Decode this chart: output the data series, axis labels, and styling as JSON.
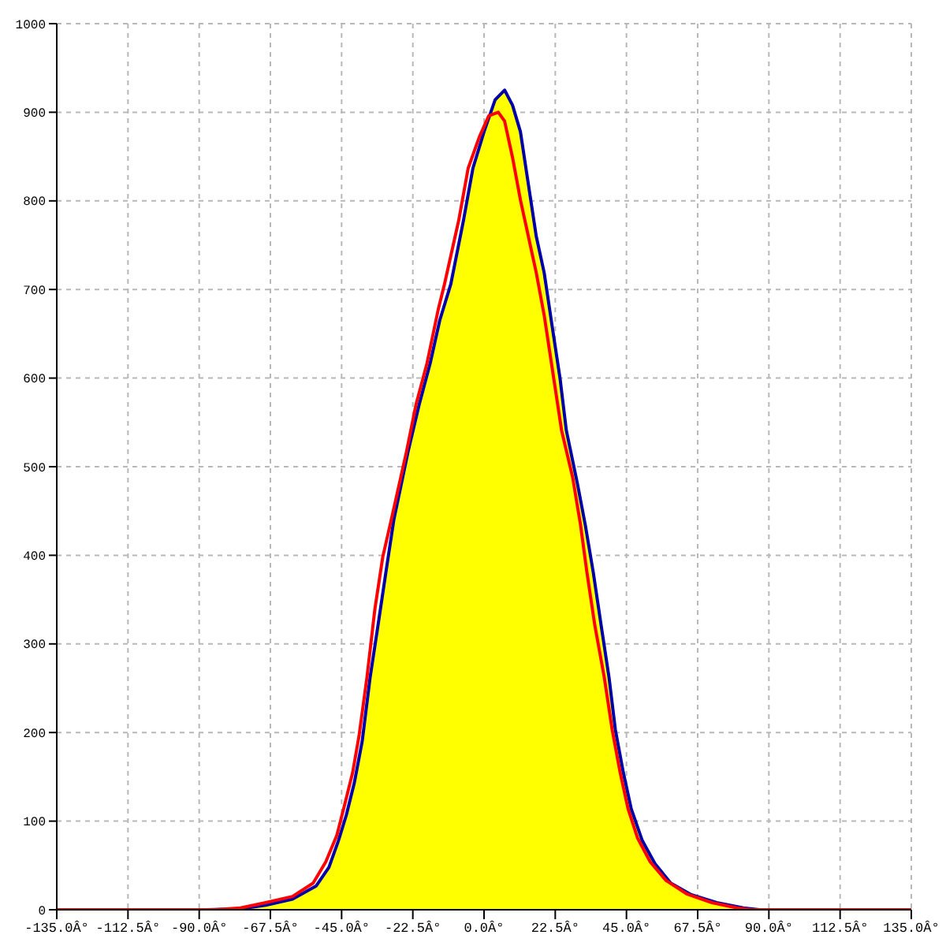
{
  "chart_data": {
    "type": "line",
    "xlim": [
      -135,
      135
    ],
    "xticks": [
      {
        "value": -135,
        "label": "-135.0Â°"
      },
      {
        "value": -112.5,
        "label": "-112.5Â°"
      },
      {
        "value": -90,
        "label": "-90.0Â°"
      },
      {
        "value": -67.5,
        "label": "-67.5Â°"
      },
      {
        "value": -45,
        "label": "-45.0Â°"
      },
      {
        "value": -22.5,
        "label": "-22.5Â°"
      },
      {
        "value": 0,
        "label": "0.0Â°"
      },
      {
        "value": 22.5,
        "label": "22.5Â°"
      },
      {
        "value": 45,
        "label": "45.0Â°"
      },
      {
        "value": 67.5,
        "label": "67.5Â°"
      },
      {
        "value": 90,
        "label": "90.0Â°"
      },
      {
        "value": 112.5,
        "label": "112.5Â°"
      },
      {
        "value": 135,
        "label": "135.0Â°"
      }
    ],
    "ylim": [
      0,
      1000
    ],
    "yticks": [
      0,
      100,
      200,
      300,
      400,
      500,
      600,
      700,
      800,
      900,
      1000
    ],
    "grid": true,
    "series": [
      {
        "type": "area",
        "color": "#ffff00",
        "x": [
          -77,
          -69,
          -60.5,
          -53,
          -49,
          -46,
          -43.5,
          -41,
          -38.5,
          -36,
          -33.5,
          -31,
          -28.5,
          -24,
          -20.5,
          -17,
          -14,
          -10.5,
          -6.5,
          -3.5,
          0,
          3.5,
          6.5,
          9,
          11.5,
          14,
          16.5,
          19,
          21.5,
          24,
          26,
          29.5,
          32,
          34.5,
          37,
          39.5,
          41.5,
          44,
          46.5,
          50,
          54,
          59,
          65.5,
          73.5,
          82
        ],
        "values": [
          1,
          5,
          12,
          27,
          48,
          78,
          107,
          143,
          190,
          262,
          321,
          381,
          440,
          517,
          570,
          617,
          665,
          706,
          778,
          837,
          878,
          914,
          925,
          908,
          878,
          819,
          760,
          719,
          659,
          600,
          541,
          481,
          434,
          381,
          321,
          262,
          203,
          155,
          114,
          78,
          52,
          30,
          17,
          8,
          2
        ]
      },
      {
        "color": "#0000aa",
        "x": [
          -88,
          -77,
          -69,
          -60.5,
          -53,
          -49,
          -46,
          -43.5,
          -41,
          -38.5,
          -36,
          -33.5,
          -31,
          -28.5,
          -24,
          -20.5,
          -17,
          -14,
          -10.5,
          -6.5,
          -3.5,
          0,
          3.5,
          6.5,
          9,
          11.5,
          14,
          16.5,
          19,
          21.5,
          24,
          26,
          29.5,
          32,
          34.5,
          37,
          39.5,
          41.5,
          44,
          46.5,
          50,
          54,
          59,
          65.5,
          73.5,
          82,
          87
        ],
        "values": [
          0,
          1,
          5,
          12,
          27,
          48,
          78,
          107,
          143,
          190,
          262,
          321,
          381,
          440,
          517,
          570,
          617,
          665,
          706,
          778,
          837,
          878,
          914,
          925,
          908,
          878,
          819,
          760,
          719,
          659,
          600,
          541,
          481,
          434,
          381,
          321,
          262,
          203,
          155,
          114,
          78,
          52,
          30,
          17,
          8,
          2,
          0
        ]
      },
      {
        "color": "#ff0000",
        "x": [
          -135,
          -85,
          -77,
          -69,
          -60.5,
          -54,
          -50,
          -46.5,
          -44,
          -41.5,
          -39.5,
          -37,
          -34.5,
          -32,
          -29.5,
          -24.5,
          -21.5,
          -18,
          -14.5,
          -12.5,
          -8,
          -5,
          -1.5,
          1.5,
          4.5,
          6.5,
          9,
          11.5,
          14,
          16.5,
          19,
          21.5,
          24.5,
          28,
          30.5,
          32.5,
          35,
          38,
          40.5,
          43,
          45.5,
          48.5,
          52.5,
          57.5,
          64,
          72,
          80,
          84.5,
          135
        ],
        "values": [
          0,
          0,
          2,
          8,
          15,
          30,
          54,
          84,
          119,
          155,
          196,
          262,
          339,
          398,
          437,
          517,
          570,
          617,
          677,
          706,
          778,
          837,
          872,
          896,
          900,
          890,
          849,
          801,
          760,
          719,
          671,
          612,
          541,
          488,
          434,
          381,
          321,
          262,
          203,
          155,
          114,
          81,
          54,
          33,
          18,
          8,
          2,
          0,
          0
        ]
      }
    ]
  }
}
